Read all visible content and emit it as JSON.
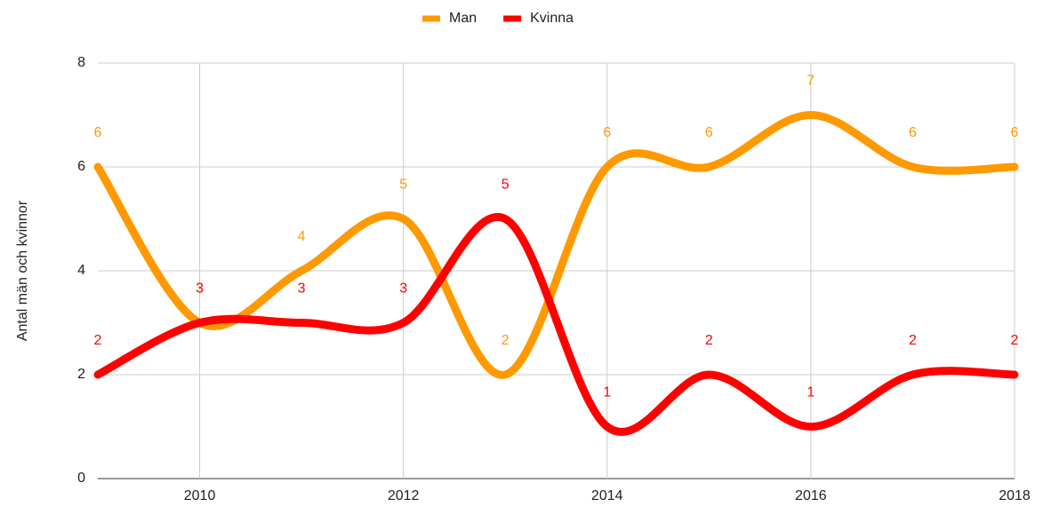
{
  "chart_data": {
    "type": "line",
    "y_label": "Antal män och kvinnor",
    "x": [
      2009,
      2010,
      2011,
      2012,
      2013,
      2014,
      2015,
      2016,
      2017,
      2018
    ],
    "series": [
      {
        "name": "Man",
        "color": "#ff9900",
        "values": [
          6,
          3,
          4,
          5,
          2,
          6,
          6,
          7,
          6,
          6
        ]
      },
      {
        "name": "Kvinna",
        "color": "#ff0000",
        "values": [
          2,
          3,
          3,
          3,
          5,
          1,
          2,
          1,
          2,
          2
        ]
      }
    ],
    "xlim": [
      2009,
      2018
    ],
    "xticks": [
      2010,
      2012,
      2014,
      2016,
      2018
    ],
    "ylim": [
      0,
      8
    ],
    "yticks": [
      0,
      2,
      4,
      6,
      8
    ],
    "grid": true,
    "smooth": true,
    "legend": "top"
  }
}
